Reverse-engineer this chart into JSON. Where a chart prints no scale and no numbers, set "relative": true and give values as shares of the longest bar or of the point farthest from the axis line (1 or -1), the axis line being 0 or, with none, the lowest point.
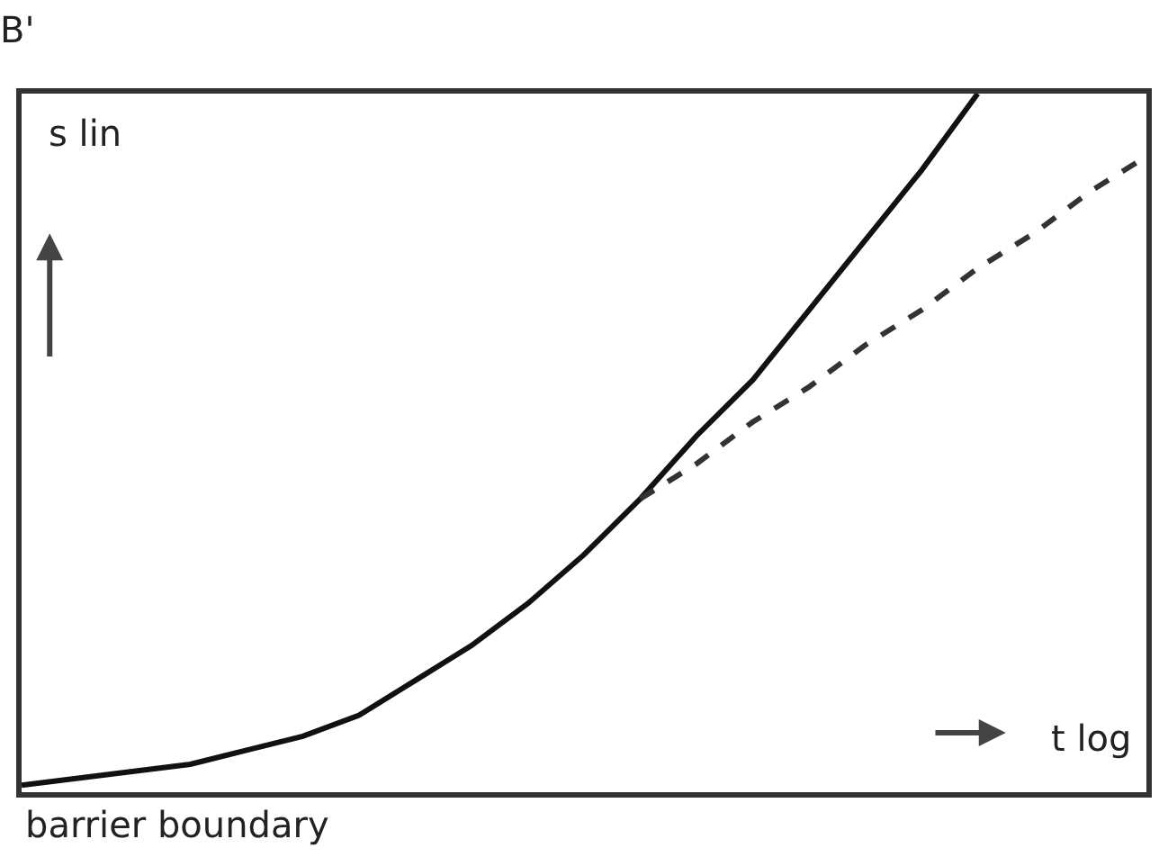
{
  "chart_data": {
    "type": "line",
    "title": "B'",
    "relative": true,
    "marker": "none",
    "categories": [
      null,
      null,
      null,
      null,
      null,
      null,
      null,
      null,
      null,
      null,
      null,
      null,
      null,
      null,
      null,
      null,
      null,
      null,
      null,
      null,
      null
    ],
    "series": [
      {
        "color": "#111111",
        "line_style": "solid",
        "values": [
          0.01,
          0.02,
          0.03,
          0.04,
          0.06,
          0.08,
          0.11,
          0.16,
          0.21,
          0.27,
          0.34,
          0.42,
          0.51,
          0.59,
          0.69,
          0.79,
          0.89,
          1.0,
          null,
          null,
          null
        ]
      },
      {
        "color": "#333333",
        "line_style": "dashed",
        "values": [
          null,
          null,
          null,
          null,
          null,
          null,
          null,
          null,
          null,
          null,
          null,
          0.42,
          0.47,
          0.53,
          0.58,
          0.64,
          0.69,
          0.75,
          0.8,
          0.86,
          0.91
        ]
      }
    ],
    "annotations": [
      "s lin",
      "t log",
      "barrier boundary"
    ]
  }
}
